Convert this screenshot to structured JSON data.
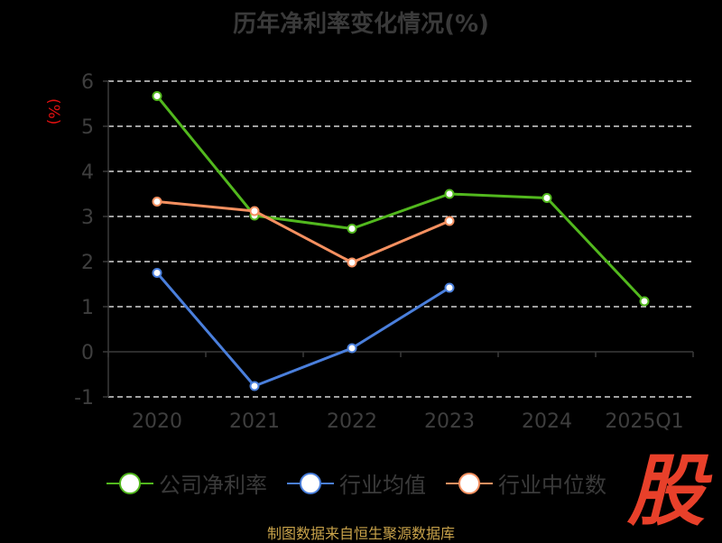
{
  "page": {
    "title": "历年净利率变化情况(%)",
    "unit_label": "(%)",
    "source": "制图数据来自恒生聚源数据库",
    "logo_text": "股"
  },
  "chart_data": {
    "type": "line",
    "title": "历年净利率变化情况(%)",
    "ylabel": "(%)",
    "xlabel": "",
    "categories": [
      "2020",
      "2021",
      "2022",
      "2023",
      "2024",
      "2025Q1"
    ],
    "ylim": [
      -1,
      6
    ],
    "yticks": [
      6,
      5,
      4,
      3,
      2,
      1,
      0,
      -1
    ],
    "grid": true,
    "legend_position": "bottom",
    "series": [
      {
        "name": "公司净利率",
        "color": "#52b81e",
        "values": [
          5.67,
          3.02,
          2.73,
          3.5,
          3.41,
          1.12
        ]
      },
      {
        "name": "行业均值",
        "color": "#4a7fdc",
        "values": [
          1.75,
          -0.76,
          0.08,
          1.42,
          null,
          null
        ]
      },
      {
        "name": "行业中位数",
        "color": "#f59060",
        "values": [
          3.33,
          3.12,
          1.98,
          2.9,
          null,
          null
        ]
      }
    ]
  },
  "legend": {
    "items": [
      {
        "label": "公司净利率",
        "color": "#52b81e"
      },
      {
        "label": "行业均值",
        "color": "#4a7fdc"
      },
      {
        "label": "行业中位数",
        "color": "#f59060"
      }
    ]
  }
}
